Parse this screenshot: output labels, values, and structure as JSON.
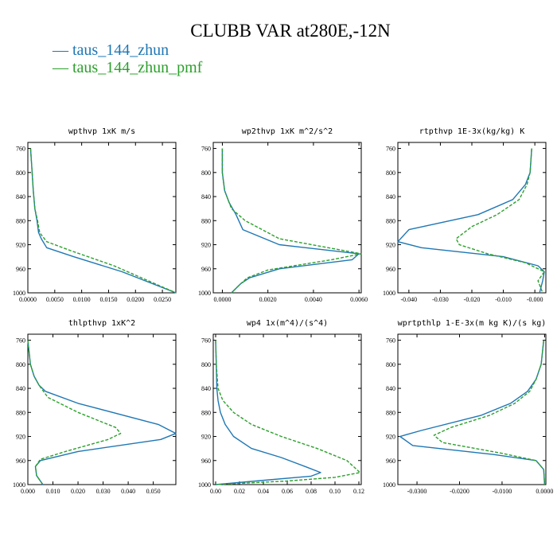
{
  "title": "CLUBB VAR at280E,-12N",
  "legend": [
    {
      "label": "taus_144_zhun",
      "color": "#1f77b4",
      "dash": "solid"
    },
    {
      "label": "taus_144_zhun_pmf",
      "color": "#2ca02c",
      "dash": "dashed"
    }
  ],
  "chart_data": [
    {
      "type": "line",
      "title": "wpthvp  1xK m/s",
      "ylim": [
        1000,
        750
      ],
      "y_ticks": [
        760,
        800,
        840,
        880,
        920,
        960,
        1000
      ],
      "xlim": [
        0,
        0.0275
      ],
      "x_ticks": [
        0,
        0.005,
        0.01,
        0.015,
        0.02,
        0.025
      ],
      "x_tick_labels": [
        "0.0000",
        "0.0050",
        "0.0100",
        "0.0150",
        "0.0200",
        "0.0250"
      ],
      "series": [
        {
          "name": "taus_144_zhun",
          "color": "#1f77b4",
          "dash": "solid",
          "x": [
            0.0005,
            0.0008,
            0.001,
            0.0013,
            0.0017,
            0.002,
            0.0025,
            0.0035,
            0.0085,
            0.0175,
            0.0275
          ],
          "y": [
            760,
            800,
            830,
            860,
            880,
            900,
            910,
            925,
            940,
            965,
            1000
          ]
        },
        {
          "name": "taus_144_zhun_pmf",
          "color": "#2ca02c",
          "dash": "dashed",
          "x": [
            0.0005,
            0.0008,
            0.001,
            0.0013,
            0.0018,
            0.0022,
            0.0035,
            0.008,
            0.016,
            0.0275
          ],
          "y": [
            760,
            800,
            830,
            860,
            880,
            900,
            915,
            930,
            955,
            1000
          ]
        }
      ]
    },
    {
      "type": "line",
      "title": "wp2thvp  1xK m^2/s^2",
      "ylim": [
        1000,
        750
      ],
      "y_ticks": [
        760,
        800,
        840,
        880,
        920,
        960,
        1000
      ],
      "xlim": [
        -0.0004,
        0.0061
      ],
      "x_ticks": [
        0,
        0.002,
        0.004,
        0.006
      ],
      "x_tick_labels": [
        "0.0000",
        "0.0020",
        "0.0040",
        "0.0060"
      ],
      "series": [
        {
          "name": "taus_144_zhun",
          "color": "#1f77b4",
          "dash": "solid",
          "x": [
            0.0,
            0.0,
            0.0001,
            0.0003,
            0.0006,
            0.0009,
            0.0025,
            0.006,
            0.0057,
            0.0025,
            0.0012,
            0.0008,
            0.0004
          ],
          "y": [
            760,
            800,
            830,
            850,
            870,
            895,
            920,
            935,
            945,
            960,
            975,
            985,
            1000
          ]
        },
        {
          "name": "taus_144_zhun_pmf",
          "color": "#2ca02c",
          "dash": "dashed",
          "x": [
            0.0,
            0.0,
            0.0001,
            0.0004,
            0.001,
            0.0025,
            0.0061,
            0.0048,
            0.002,
            0.0011,
            0.0008,
            0.0004
          ],
          "y": [
            760,
            800,
            830,
            860,
            880,
            910,
            935,
            945,
            962,
            975,
            985,
            1000
          ]
        }
      ]
    },
    {
      "type": "line",
      "title": "rtpthvp  1E-3x(kg/kg) K",
      "ylim": [
        1000,
        750
      ],
      "y_ticks": [
        760,
        800,
        840,
        880,
        920,
        960,
        1000
      ],
      "xlim": [
        -0.0435,
        0.0035
      ],
      "x_ticks": [
        -0.04,
        -0.03,
        -0.02,
        -0.01,
        0
      ],
      "x_tick_labels": [
        "-0.040",
        "-0.030",
        "-0.020",
        "-0.010",
        "-0.000"
      ],
      "series": [
        {
          "name": "taus_144_zhun",
          "color": "#1f77b4",
          "dash": "solid",
          "x": [
            -0.001,
            -0.0015,
            -0.003,
            -0.007,
            -0.018,
            -0.04,
            -0.0435,
            -0.036,
            -0.01,
            0.001,
            0.003,
            0.0025,
            0.0015
          ],
          "y": [
            760,
            800,
            820,
            845,
            870,
            895,
            915,
            925,
            940,
            955,
            965,
            980,
            1000
          ]
        },
        {
          "name": "taus_144_zhun_pmf",
          "color": "#2ca02c",
          "dash": "dashed",
          "x": [
            -0.001,
            -0.0015,
            -0.0025,
            -0.005,
            -0.012,
            -0.02,
            -0.025,
            -0.024,
            -0.015,
            -0.003,
            0.003,
            0.001,
            0.0025
          ],
          "y": [
            760,
            800,
            820,
            845,
            870,
            890,
            910,
            920,
            935,
            950,
            965,
            980,
            1000
          ]
        }
      ]
    },
    {
      "type": "line",
      "title": "thlpthvp  1xK^2",
      "ylim": [
        1000,
        750
      ],
      "y_ticks": [
        760,
        800,
        840,
        880,
        920,
        960,
        1000
      ],
      "xlim": [
        0,
        0.059
      ],
      "x_ticks": [
        0,
        0.01,
        0.02,
        0.03,
        0.04,
        0.05
      ],
      "x_tick_labels": [
        "0.000",
        "0.010",
        "0.020",
        "0.030",
        "0.040",
        "0.050"
      ],
      "series": [
        {
          "name": "taus_144_zhun",
          "color": "#1f77b4",
          "dash": "solid",
          "x": [
            0.0,
            0.001,
            0.0025,
            0.0045,
            0.007,
            0.02,
            0.052,
            0.059,
            0.053,
            0.02,
            0.005,
            0.003,
            0.0035,
            0.006
          ],
          "y": [
            760,
            800,
            820,
            835,
            845,
            865,
            900,
            915,
            925,
            945,
            960,
            970,
            985,
            1000
          ]
        },
        {
          "name": "taus_144_zhun_pmf",
          "color": "#2ca02c",
          "dash": "dashed",
          "x": [
            0.0,
            0.001,
            0.0025,
            0.0045,
            0.008,
            0.02,
            0.035,
            0.037,
            0.032,
            0.015,
            0.005,
            0.003,
            0.0035,
            0.006
          ],
          "y": [
            760,
            800,
            820,
            835,
            855,
            880,
            905,
            915,
            925,
            945,
            958,
            970,
            985,
            1000
          ]
        }
      ]
    },
    {
      "type": "line",
      "title": "wp4  1x(m^4)/(s^4)",
      "ylim": [
        1000,
        750
      ],
      "y_ticks": [
        760,
        800,
        840,
        880,
        920,
        960,
        1000
      ],
      "xlim": [
        -0.002,
        0.122
      ],
      "x_ticks": [
        0,
        0.02,
        0.04,
        0.06,
        0.08,
        0.1,
        0.12
      ],
      "x_tick_labels": [
        "0.00",
        "0.02",
        "0.04",
        "0.06",
        "0.08",
        "0.10",
        "0.12"
      ],
      "series": [
        {
          "name": "taus_144_zhun",
          "color": "#1f77b4",
          "dash": "solid",
          "x": [
            0.0,
            0.0005,
            0.001,
            0.002,
            0.004,
            0.008,
            0.015,
            0.03,
            0.055,
            0.075,
            0.088,
            0.08,
            0.045,
            0.0
          ],
          "y": [
            760,
            800,
            840,
            860,
            880,
            900,
            920,
            940,
            955,
            970,
            980,
            986,
            992,
            1000
          ]
        },
        {
          "name": "taus_144_zhun_pmf",
          "color": "#2ca02c",
          "dash": "dashed",
          "x": [
            0.0,
            0.0005,
            0.002,
            0.006,
            0.015,
            0.03,
            0.055,
            0.085,
            0.11,
            0.121,
            0.1,
            0.06,
            0.0
          ],
          "y": [
            760,
            800,
            840,
            860,
            880,
            900,
            920,
            940,
            960,
            980,
            988,
            994,
            1000
          ]
        }
      ]
    },
    {
      "type": "line",
      "title": "wprtpthlp  1-E-3x(m kg K)/(s kg)",
      "ylim": [
        1000,
        750
      ],
      "y_ticks": [
        760,
        800,
        840,
        880,
        920,
        960,
        1000
      ],
      "xlim": [
        -0.0345,
        0.0003
      ],
      "x_ticks": [
        -0.03,
        -0.02,
        -0.01,
        0
      ],
      "x_tick_labels": [
        "-0.0300",
        "-0.0200",
        "-0.0100",
        "0.0000"
      ],
      "series": [
        {
          "name": "taus_144_zhun",
          "color": "#1f77b4",
          "dash": "solid",
          "x": [
            -0.0002,
            -0.0008,
            -0.002,
            -0.004,
            -0.008,
            -0.015,
            -0.029,
            -0.034,
            -0.031,
            -0.012,
            -0.002,
            -0.0002,
            0.0
          ],
          "y": [
            760,
            800,
            825,
            845,
            865,
            885,
            910,
            920,
            935,
            950,
            960,
            975,
            1000
          ]
        },
        {
          "name": "taus_144_zhun_pmf",
          "color": "#2ca02c",
          "dash": "dashed",
          "x": [
            -0.0002,
            -0.0008,
            -0.002,
            -0.0035,
            -0.007,
            -0.013,
            -0.022,
            -0.026,
            -0.024,
            -0.01,
            -0.002,
            -0.0002,
            0.0
          ],
          "y": [
            760,
            800,
            825,
            845,
            865,
            885,
            905,
            918,
            930,
            948,
            960,
            975,
            1000
          ]
        }
      ]
    }
  ]
}
